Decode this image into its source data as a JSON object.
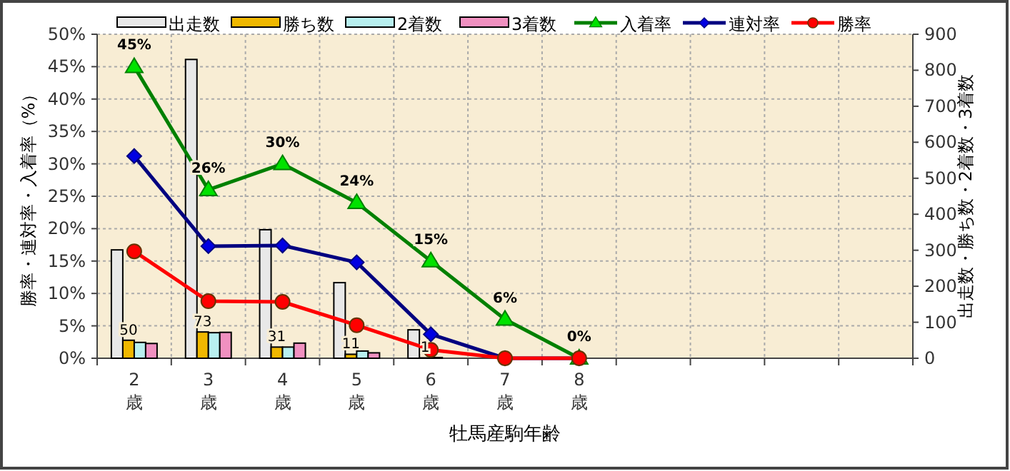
{
  "chart_data": {
    "type": "bar",
    "xlabel": "牡馬産駒年齢",
    "ylabel": "勝率・連対率・入着率（%）",
    "y2label": "出走数・勝ち数・2着数・3着数",
    "categories": [
      "2\n歳",
      "3\n歳",
      "4\n歳",
      "5\n歳",
      "6\n歳",
      "7\n歳",
      "8\n歳",
      null,
      null,
      null,
      null
    ],
    "ylim": [
      0,
      50
    ],
    "yticks": [
      {
        "value": 0,
        "label": "0%"
      },
      {
        "value": 5,
        "label": "5%"
      },
      {
        "value": 10,
        "label": "10%"
      },
      {
        "value": 15,
        "label": "15%"
      },
      {
        "value": 20,
        "label": "20%"
      },
      {
        "value": 25,
        "label": "25%"
      },
      {
        "value": 30,
        "label": "30%"
      },
      {
        "value": 35,
        "label": "35%"
      },
      {
        "value": 40,
        "label": "40%"
      },
      {
        "value": 45,
        "label": "45%"
      },
      {
        "value": 50,
        "label": "50%"
      }
    ],
    "y2lim": [
      0,
      900
    ],
    "y2ticks": [
      0,
      100,
      200,
      300,
      400,
      500,
      600,
      700,
      800,
      900
    ],
    "grid": true,
    "legend": "top",
    "series": [
      {
        "name": "出走数",
        "axis": "y2",
        "color": "#e8e8e8",
        "values": [
          301,
          830,
          357,
          210,
          79,
          null,
          2,
          null,
          null,
          null,
          null
        ]
      },
      {
        "name": "勝ち数",
        "axis": "y2",
        "color": "#f0b800",
        "values": [
          50,
          73,
          31,
          11,
          1,
          0,
          0,
          null,
          null,
          null,
          null
        ],
        "value_labels": [
          "50",
          "73",
          "31",
          "11",
          "1",
          null,
          null,
          null,
          null,
          null,
          null
        ]
      },
      {
        "name": "2着数",
        "axis": "y2",
        "color": "#b8f0f0",
        "values": [
          44,
          71,
          31,
          20,
          2,
          0,
          0,
          null,
          null,
          null,
          null
        ]
      },
      {
        "name": "3着数",
        "axis": "y2",
        "color": "#f090c0",
        "values": [
          41,
          72,
          42,
          15,
          null,
          null,
          0,
          null,
          null,
          null,
          null
        ]
      },
      {
        "name": "入着率",
        "type": "line",
        "color": "#008000",
        "marker": "triangle",
        "values": [
          45,
          26,
          30,
          24,
          15,
          6,
          0,
          null,
          null,
          null,
          null
        ],
        "value_labels": [
          "45%",
          "26%",
          "30%",
          "24%",
          "15%",
          "6%",
          "0%",
          null,
          null,
          null,
          null
        ]
      },
      {
        "name": "連対率",
        "type": "line",
        "color": "#000080",
        "marker": "diamond",
        "values": [
          31.2,
          17.3,
          17.4,
          14.8,
          3.7,
          0,
          0,
          null,
          null,
          null,
          null
        ]
      },
      {
        "name": "勝率",
        "type": "line",
        "color": "#ff0000",
        "marker": "circle",
        "values": [
          16.5,
          8.8,
          8.7,
          5.1,
          1.3,
          0,
          0,
          null,
          null,
          null,
          null
        ]
      }
    ]
  }
}
